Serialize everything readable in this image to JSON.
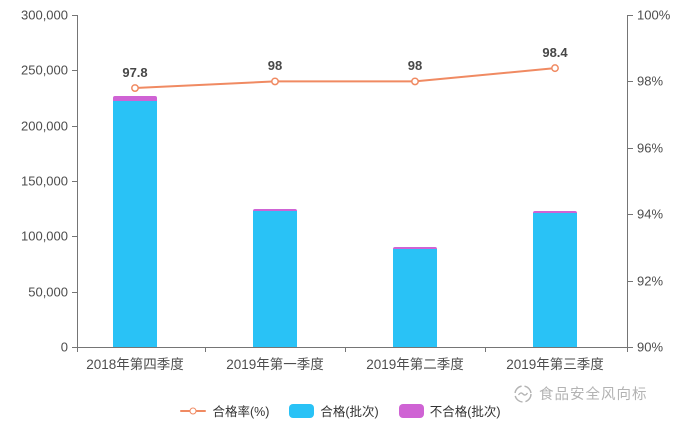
{
  "chart_data": {
    "type": "bar",
    "subtype": "stacked-bars-with-line-overlay",
    "title": "",
    "categories": [
      "2018年第四季度",
      "2019年第一季度",
      "2019年第二季度",
      "2019年第三季度"
    ],
    "series": [
      {
        "name": "合格率(%)",
        "type": "line",
        "axis": "right",
        "values": [
          97.8,
          98,
          98,
          98.4
        ],
        "point_labels": [
          "97.8",
          "98",
          "98",
          "98.4"
        ]
      },
      {
        "name": "合格(批次)",
        "type": "bar",
        "axis": "left",
        "stack": "total",
        "values": [
          222000,
          122500,
          88500,
          121000
        ]
      },
      {
        "name": "不合格(批次)",
        "type": "bar",
        "axis": "left",
        "stack": "total",
        "values": [
          5000,
          2500,
          1800,
          2000
        ]
      }
    ],
    "left_axis": {
      "min": 0,
      "max": 300000,
      "step": 50000,
      "tick_labels": [
        "0",
        "50,000",
        "100,000",
        "150,000",
        "200,000",
        "250,000",
        "300,000"
      ]
    },
    "right_axis": {
      "min": 90,
      "max": 100,
      "step": 2,
      "tick_labels": [
        "90%",
        "92%",
        "94%",
        "96%",
        "98%",
        "100%"
      ]
    },
    "grid": false,
    "legend_position": "bottom"
  },
  "colors": {
    "line": "#f08a62",
    "pass_bar": "#29c2f6",
    "fail_bar": "#cf63d4",
    "axis": "#757575",
    "tick_text": "#4d4d4d",
    "watermark": "#a6a6a6"
  },
  "watermark": {
    "text": "食品安全风向标"
  }
}
